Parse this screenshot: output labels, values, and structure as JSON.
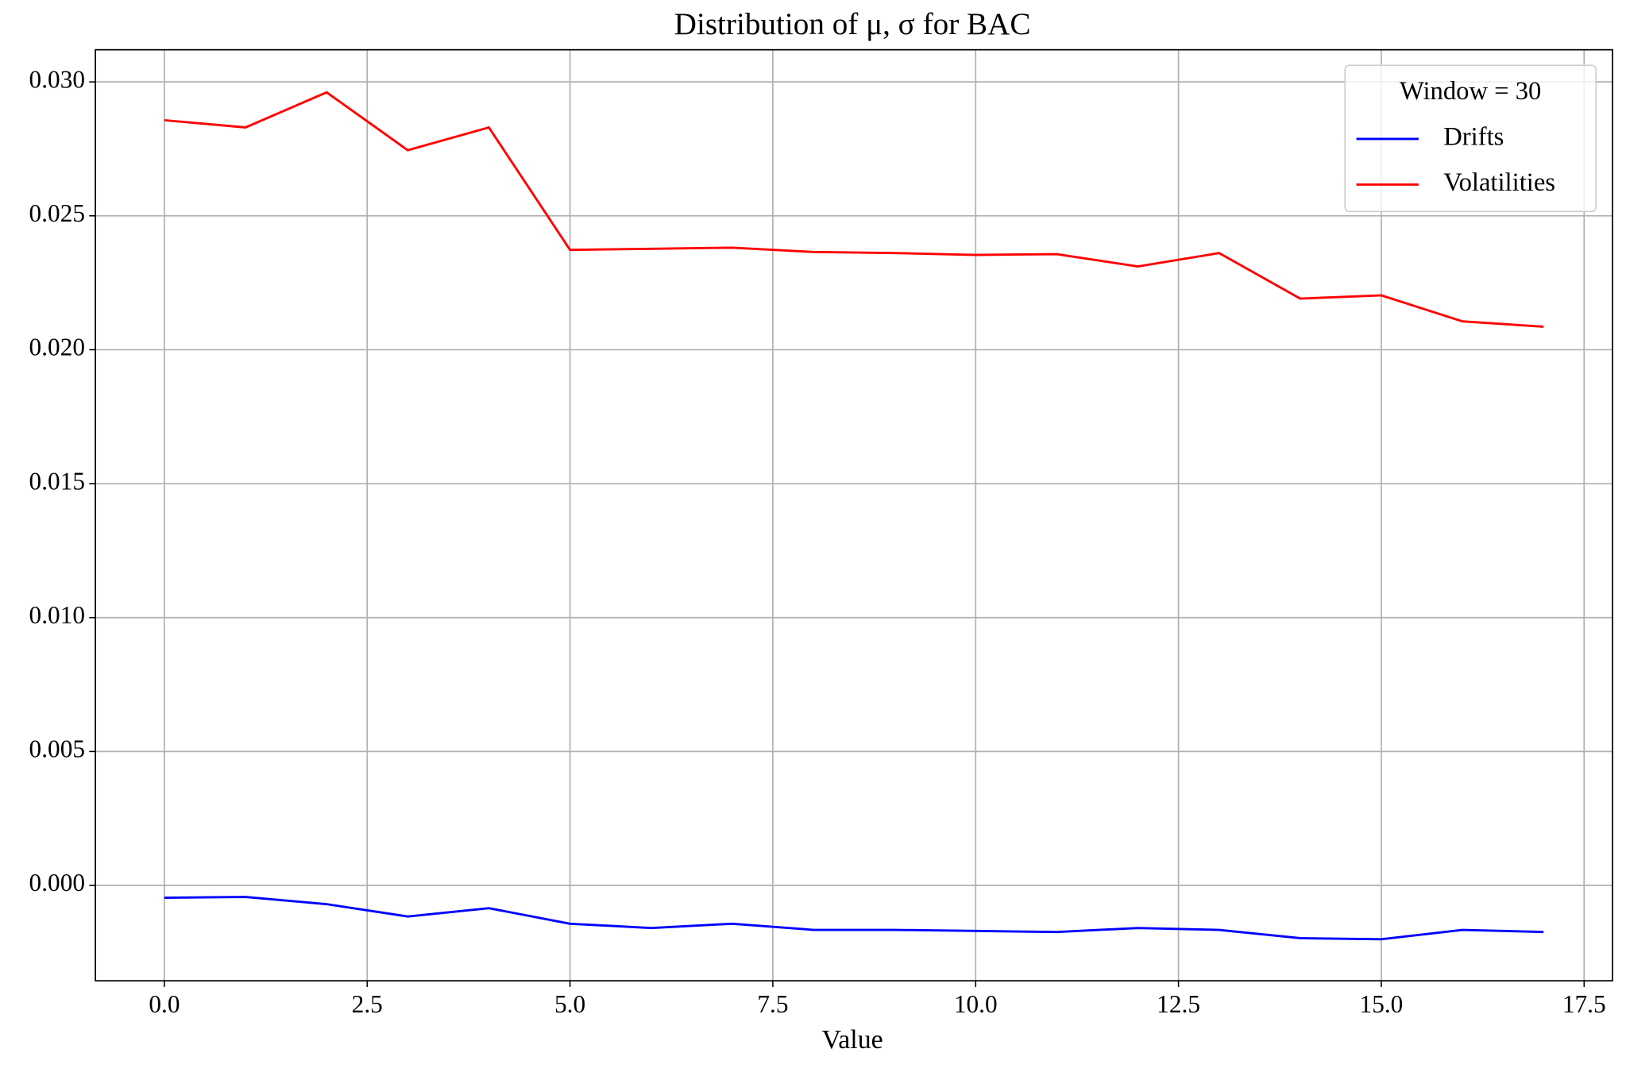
{
  "chart_data": {
    "type": "line",
    "title": "Distribution of μ, σ for BAC",
    "x_label": "Value",
    "x": [
      0,
      1,
      2,
      3,
      4,
      5,
      6,
      7,
      8,
      9,
      10,
      11,
      12,
      13,
      14,
      15,
      16,
      17
    ],
    "series": [
      {
        "name": "Drifts",
        "color": "#0000ff",
        "values": [
          -0.00046,
          -0.00043,
          -0.0007,
          -0.00116,
          -0.00085,
          -0.00143,
          -0.00159,
          -0.00143,
          -0.00166,
          -0.00166,
          -0.0017,
          -0.00174,
          -0.00159,
          -0.00166,
          -0.00197,
          -0.00201,
          -0.00166,
          -0.00174
        ]
      },
      {
        "name": "Volatilities",
        "color": "#ff0000",
        "values": [
          0.02857,
          0.0283,
          0.02961,
          0.02745,
          0.0283,
          0.02373,
          0.02377,
          0.02381,
          0.02365,
          0.02361,
          0.02354,
          0.02357,
          0.02311,
          0.02361,
          0.02191,
          0.02203,
          0.02106,
          0.02086
        ]
      }
    ],
    "legend_title": "Window = 30",
    "legend": "upper right",
    "grid": true,
    "xlim": [
      -0.85,
      17.85
    ],
    "ylim": [
      -0.00356,
      0.0312
    ],
    "xticks": [
      {
        "value": 0,
        "label": "0.0"
      },
      2.5,
      {
        "value": 5,
        "label": "5.0"
      },
      7.5,
      {
        "value": 10,
        "label": "10.0"
      },
      12.5,
      {
        "value": 15,
        "label": "15.0"
      },
      17.5
    ],
    "yticks": [
      {
        "value": 0,
        "label": "0.000"
      },
      0.005,
      {
        "value": 0.01,
        "label": "0.010"
      },
      0.015,
      {
        "value": 0.02,
        "label": "0.020"
      },
      0.025,
      {
        "value": 0.03,
        "label": "0.030"
      }
    ]
  }
}
